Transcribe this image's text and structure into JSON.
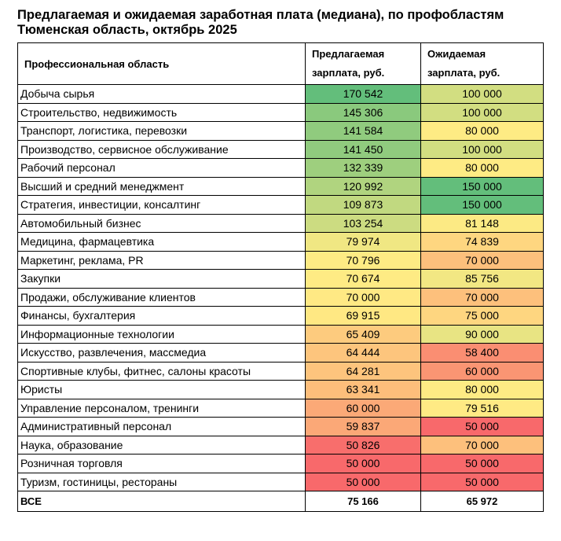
{
  "title": {
    "line1": "Предлагаемая и ожидаемая заработная плата (медиана), по профобластям",
    "line2": "Тюменская область, октябрь 2025"
  },
  "table": {
    "header": [
      "Профессиональная область",
      "Предлагаемая зарплата, руб.",
      "Ожидаемая зарплата, руб."
    ],
    "rows": [
      [
        "Добыча сырья",
        "170 542",
        "100 000"
      ],
      [
        "Строительство, недвижимость",
        "145 306",
        "100 000"
      ],
      [
        "Транспорт, логистика, перевозки",
        "141 584",
        "80 000"
      ],
      [
        "Производство, сервисное обслуживание",
        "141 450",
        "100 000"
      ],
      [
        "Рабочий персонал",
        "132 339",
        "80 000"
      ],
      [
        "Высший и средний менеджмент",
        "120 992",
        "150 000"
      ],
      [
        "Стратегия, инвестиции, консалтинг",
        "109 873",
        "150 000"
      ],
      [
        "Автомобильный бизнес",
        "103 254",
        "81 148"
      ],
      [
        "Медицина, фармацевтика",
        "79 974",
        "74 839"
      ],
      [
        "Маркетинг, реклама, PR",
        "70 796",
        "70 000"
      ],
      [
        "Закупки",
        "70 674",
        "85 756"
      ],
      [
        "Продажи, обслуживание клиентов",
        "70 000",
        "70 000"
      ],
      [
        "Финансы, бухгалтерия",
        "69 915",
        "75 000"
      ],
      [
        "Информационные технологии",
        "65 409",
        "90 000"
      ],
      [
        "Искусство, развлечения, массмедиа",
        "64 444",
        "58 400"
      ],
      [
        "Спортивные клубы, фитнес, салоны красоты",
        "64 281",
        "60 000"
      ],
      [
        "Юристы",
        "63 341",
        "80 000"
      ],
      [
        "Управление персоналом, тренинги",
        "60 000",
        "79 516"
      ],
      [
        "Административный персонал",
        "59 837",
        "50 000"
      ],
      [
        "Наука, образование",
        "50 826",
        "70 000"
      ],
      [
        "Розничная торговля",
        "50 000",
        "50 000"
      ],
      [
        "Туризм, гостиницы, рестораны",
        "50 000",
        "50 000"
      ]
    ],
    "total": [
      "ВСЕ",
      "75 166",
      "65 972"
    ]
  }
}
